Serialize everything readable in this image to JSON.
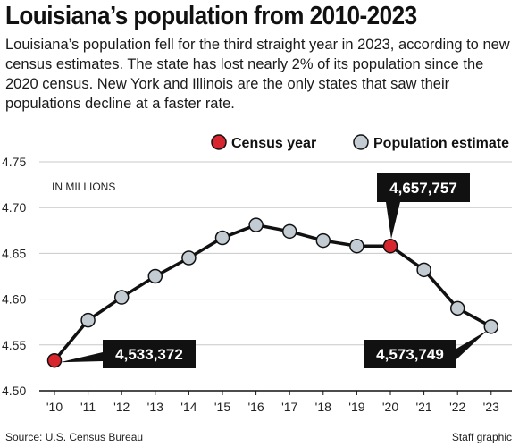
{
  "header": {
    "title": "Louisiana’s population from 2010-2023",
    "subtitle": "Louisiana’s population fell for the third straight year in 2023, according to new census estimates. The state has lost nearly 2% of its population since the 2020 census. New York and Illinois are the only states that saw their populations decline at a faster rate."
  },
  "legend": {
    "census_label": "Census year",
    "estimate_label": "Population estimate"
  },
  "footer": {
    "source": "Source: U.S. Census Bureau",
    "credit": "Staff graphic"
  },
  "colors": {
    "census": "#d7262e",
    "estimate": "#c3ccd2",
    "line": "#111111",
    "callout_bg": "#111111",
    "grid": "#c8c8c8"
  },
  "chart_data": {
    "type": "line",
    "unit_label": "IN MILLIONS",
    "x": [
      "'10",
      "'11",
      "'12",
      "'13",
      "'14",
      "'15",
      "'16",
      "'17",
      "'18",
      "'19",
      "'20",
      "'21",
      "'22",
      "'23"
    ],
    "values": [
      4.533,
      4.577,
      4.602,
      4.625,
      4.645,
      4.667,
      4.681,
      4.674,
      4.664,
      4.658,
      4.658,
      4.632,
      4.59,
      4.57
    ],
    "point_kind": [
      "census",
      "estimate",
      "estimate",
      "estimate",
      "estimate",
      "estimate",
      "estimate",
      "estimate",
      "estimate",
      "estimate",
      "census",
      "estimate",
      "estimate",
      "estimate"
    ],
    "ylim": [
      4.5,
      4.75
    ],
    "yticks": [
      "4.50",
      "4.55",
      "4.60",
      "4.65",
      "4.70",
      "4.75"
    ],
    "grid": true,
    "legend_position": "top-right",
    "callouts": [
      {
        "index": 0,
        "text": "4,533,372"
      },
      {
        "index": 10,
        "text": "4,657,757"
      },
      {
        "index": 13,
        "text": "4,573,749"
      }
    ]
  }
}
